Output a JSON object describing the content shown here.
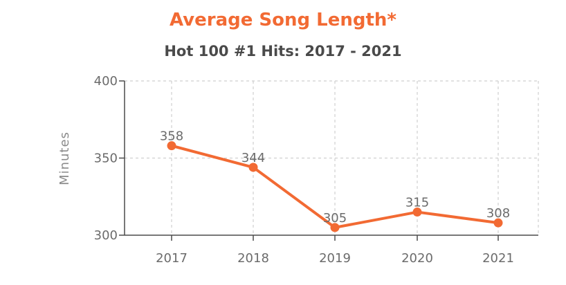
{
  "chart_data": {
    "type": "line",
    "title": "Average Song Length*",
    "subtitle": "Hot 100 #1 Hits: 2017 - 2021",
    "xlabel": "",
    "ylabel": "Minutes",
    "categories": [
      "2017",
      "2018",
      "2019",
      "2020",
      "2021"
    ],
    "series": [
      {
        "values": [
          358,
          344,
          305,
          315,
          308
        ],
        "data_labels": [
          "358",
          "344",
          "305",
          "315",
          "308"
        ]
      }
    ],
    "ylim": [
      300,
      400
    ],
    "yticks": [
      300,
      350,
      400
    ],
    "ytick_labels": [
      "300",
      "350",
      "400"
    ],
    "grid": true,
    "legend": "none",
    "colors": {
      "line": "#f26a33",
      "title": "#f26a33",
      "subtitle": "#4a4a4a",
      "grid": "#cfcfcf",
      "axis": "#4a4a4a",
      "text": "#6b6b6b"
    }
  }
}
